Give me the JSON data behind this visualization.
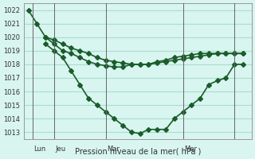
{
  "background_color": "#d8f5f0",
  "grid_color": "#aaddcc",
  "line_color": "#1a5c2a",
  "marker_color": "#1a5c2a",
  "series1_x": [
    0,
    1,
    2,
    3,
    4,
    5,
    6,
    7,
    8,
    9,
    10,
    11,
    12,
    13,
    14,
    15,
    16,
    17,
    18,
    19,
    20,
    21,
    22,
    23,
    24,
    25
  ],
  "series1_y": [
    1022,
    1021,
    1020,
    1019.5,
    1019,
    1018.8,
    1018.5,
    1018.2,
    1018.0,
    1017.9,
    1017.8,
    1017.8,
    1018.0,
    1018.0,
    1018.0,
    1018.2,
    1018.3,
    1018.5,
    1018.6,
    1018.7,
    1018.8,
    1018.8,
    1018.8,
    1018.8,
    1018.8,
    1018.8
  ],
  "series2_x": [
    2,
    3,
    4,
    5,
    6,
    7,
    8,
    9,
    10,
    11,
    12,
    13,
    14,
    15,
    16,
    17,
    18,
    19,
    20,
    21,
    22,
    23,
    24,
    25
  ],
  "series2_y": [
    1020,
    1019.8,
    1019.5,
    1019.2,
    1019.0,
    1018.8,
    1018.5,
    1018.3,
    1018.2,
    1018.1,
    1018.0,
    1018.0,
    1018.0,
    1018.1,
    1018.2,
    1018.3,
    1018.4,
    1018.5,
    1018.6,
    1018.7,
    1018.8,
    1018.8,
    1018.8,
    1018.8
  ],
  "series3_x": [
    2,
    3,
    4,
    5,
    6,
    7,
    8,
    9,
    10,
    11,
    12,
    13,
    14,
    15,
    16,
    17,
    18,
    19,
    20,
    21,
    22,
    23,
    24,
    25
  ],
  "series3_y": [
    1019.5,
    1019.0,
    1018.5,
    1017.5,
    1016.5,
    1015.5,
    1015.0,
    1014.5,
    1014.0,
    1013.5,
    1013.0,
    1012.9,
    1013.2,
    1013.2,
    1013.2,
    1014.0,
    1014.5,
    1015.0,
    1015.5,
    1016.5,
    1016.8,
    1017.0,
    1018.0,
    1018.0
  ],
  "xtick_positions": [
    0.5,
    3,
    9,
    18,
    24
  ],
  "xtick_labels": [
    "Lun",
    "Jeu",
    "Mar",
    "Mer",
    ""
  ],
  "xtick_vlines": [
    0.5,
    3,
    9,
    18,
    24
  ],
  "ylim": [
    1012.5,
    1022.5
  ],
  "ytick_positions": [
    1013,
    1014,
    1015,
    1016,
    1017,
    1018,
    1019,
    1020,
    1021,
    1022
  ],
  "ytick_labels": [
    "1013",
    "1014",
    "1015",
    "1016",
    "1017",
    "1018",
    "1019",
    "1020",
    "1021",
    "1022"
  ],
  "xlabel": "Pression niveau de la mer( hPa )",
  "title": "",
  "marker_size": 3,
  "line_width": 1.2
}
